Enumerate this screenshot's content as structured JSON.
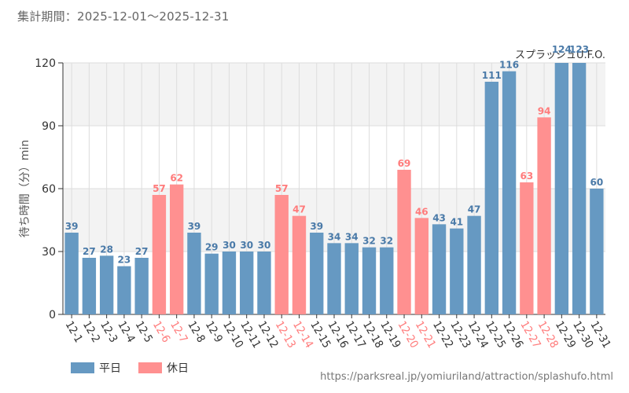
{
  "header": {
    "title": "集計期間：2025-12-01〜2025-12-31"
  },
  "overlay_label": "スプラッシュU.F.O.",
  "source_url": "https://parksreal.jp/yomiuriland/attraction/splashufo.html",
  "legend": [
    {
      "label": "平日",
      "color": "#6699c2"
    },
    {
      "label": "休日",
      "color": "#ff9090"
    }
  ],
  "colors": {
    "weekday": "#6699c2",
    "holiday": "#ff9090",
    "weekday_label": "#4a7aa8",
    "holiday_label": "#ff7b7b",
    "band": "#f3f3f3",
    "grid": "#dddddd"
  },
  "chart_data": {
    "type": "bar",
    "title": "",
    "xlabel": "",
    "ylabel": "待ち時間（分）min",
    "ylim": [
      0,
      120
    ],
    "yticks": [
      "0",
      "30",
      "60",
      "90",
      "120"
    ],
    "categories": [
      "12-1",
      "12-2",
      "12-3",
      "12-4",
      "12-5",
      "12-6",
      "12-7",
      "12-8",
      "12-9",
      "12-10",
      "12-11",
      "12-12",
      "12-13",
      "12-14",
      "12-15",
      "12-16",
      "12-17",
      "12-18",
      "12-19",
      "12-20",
      "12-21",
      "12-22",
      "12-23",
      "12-24",
      "12-25",
      "12-26",
      "12-27",
      "12-28",
      "12-29",
      "12-30",
      "12-31"
    ],
    "values": [
      39,
      27,
      28,
      23,
      27,
      57,
      62,
      39,
      29,
      30,
      30,
      30,
      57,
      47,
      39,
      34,
      34,
      32,
      32,
      69,
      46,
      43,
      41,
      47,
      111,
      116,
      63,
      94,
      124,
      123,
      60
    ],
    "day_type": [
      "weekday",
      "weekday",
      "weekday",
      "weekday",
      "weekday",
      "holiday",
      "holiday",
      "weekday",
      "weekday",
      "weekday",
      "weekday",
      "weekday",
      "holiday",
      "holiday",
      "weekday",
      "weekday",
      "weekday",
      "weekday",
      "weekday",
      "holiday",
      "holiday",
      "weekday",
      "weekday",
      "weekday",
      "weekday",
      "weekday",
      "holiday",
      "holiday",
      "weekday",
      "weekday",
      "weekday"
    ],
    "legend_position": "bottom-left"
  }
}
